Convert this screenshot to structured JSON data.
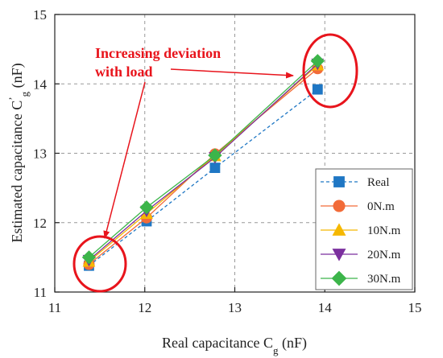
{
  "chart_data": {
    "type": "line",
    "xlabel": "Real capacitance C",
    "xlabel_sub": "g",
    "xlabel_unit": " (nF)",
    "ylabel": "Estimated capacitance C",
    "ylabel_prime": "’",
    "ylabel_sub": "g",
    "ylabel_unit": " (nF)",
    "xlim": [
      11,
      15
    ],
    "ylim": [
      11,
      15
    ],
    "xticks": [
      11,
      12,
      13,
      14,
      15
    ],
    "yticks": [
      11,
      12,
      13,
      14,
      15
    ],
    "grid": true,
    "legend_position": "bottom-right",
    "x": [
      11.38,
      12.02,
      12.78,
      13.92
    ],
    "series": [
      {
        "name": "Real",
        "values": [
          11.38,
          12.02,
          12.79,
          13.92
        ],
        "color": "#1f77c4",
        "marker": "square",
        "dashed": true
      },
      {
        "name": "0N.m",
        "values": [
          11.4,
          12.07,
          12.99,
          14.22
        ],
        "color": "#f26b38",
        "marker": "circle",
        "dashed": false
      },
      {
        "name": "10N.m",
        "values": [
          11.44,
          12.13,
          12.96,
          14.27
        ],
        "color": "#f5b800",
        "marker": "triangle-up",
        "dashed": false
      },
      {
        "name": "20N.m",
        "values": [
          11.46,
          12.17,
          12.94,
          14.29
        ],
        "color": "#7b2f9e",
        "marker": "triangle-down",
        "dashed": false
      },
      {
        "name": "30N.m",
        "values": [
          11.5,
          12.22,
          12.97,
          14.33
        ],
        "color": "#3cb54a",
        "marker": "diamond",
        "dashed": false
      }
    ],
    "annotation": {
      "lines": [
        "Increasing deviation",
        "with load"
      ],
      "color": "#e8141c"
    }
  }
}
